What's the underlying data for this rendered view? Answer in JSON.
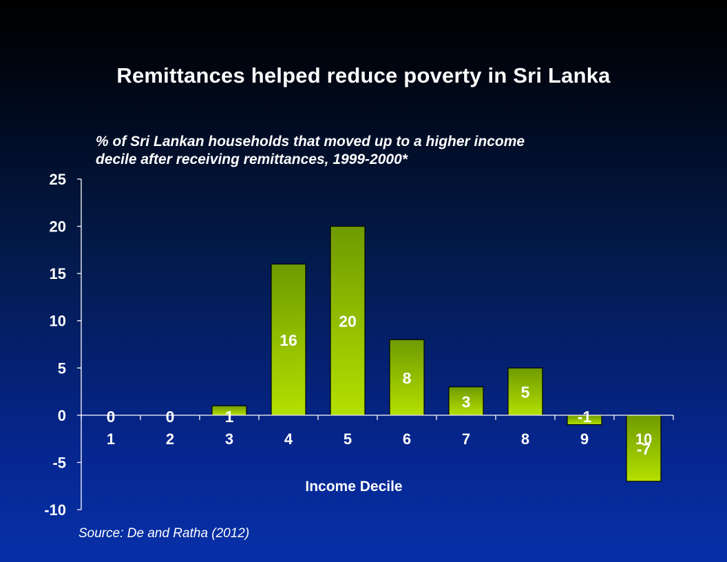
{
  "title": "Remittances helped reduce poverty in Sri Lanka",
  "source": "Source: De and Ratha (2012)",
  "colors": {
    "bar_top": "#6f9a00",
    "bar_bottom": "#b4e000",
    "bar_border": "#000000",
    "axis": "#ffffff",
    "text": "#ffffff"
  },
  "chart_data": {
    "type": "bar",
    "title": "% of Sri Lankan households that moved up to a higher income decile after receiving remittances, 1999-2000*",
    "xlabel": "Income Decile",
    "ylabel": "",
    "categories": [
      "1",
      "2",
      "3",
      "4",
      "5",
      "6",
      "7",
      "8",
      "9",
      "10"
    ],
    "values": [
      0,
      0,
      1,
      16,
      20,
      8,
      3,
      5,
      -1,
      -7
    ],
    "data_labels": [
      "0",
      "0",
      "1",
      "16",
      "20",
      "8",
      "3",
      "5",
      "-1",
      "-7"
    ],
    "ylim": [
      -10,
      25
    ],
    "yticks": [
      25,
      20,
      15,
      10,
      5,
      0,
      -5,
      -10
    ],
    "ytick_labels": [
      "25",
      "20",
      "15",
      "10",
      "5",
      "0",
      "-5",
      "-10"
    ],
    "grid": false,
    "legend": "none"
  }
}
